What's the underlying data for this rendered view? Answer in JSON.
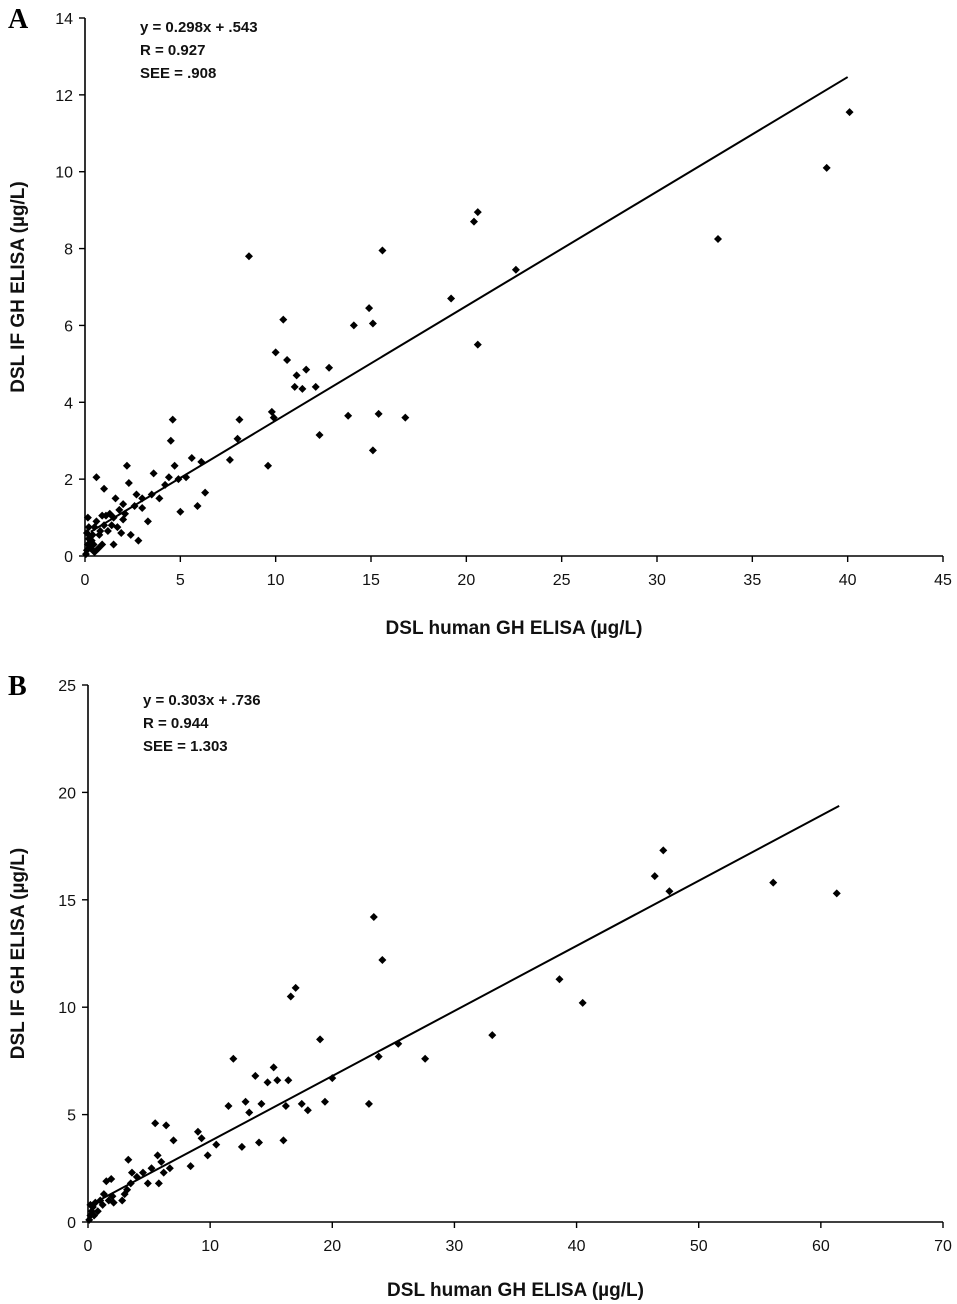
{
  "chart_data": [
    {
      "panel_label": "A",
      "type": "scatter",
      "xlabel": "DSL human GH ELISA (µg/L)",
      "ylabel": "DSL IF GH ELISA (µg/L)",
      "xlim": [
        0,
        45
      ],
      "ylim": [
        0,
        14
      ],
      "xticks": [
        0,
        5,
        10,
        15,
        20,
        25,
        30,
        35,
        40,
        45
      ],
      "yticks": [
        0,
        2,
        4,
        6,
        8,
        10,
        12,
        14
      ],
      "grid": false,
      "annotations": [
        "y = 0.298x + .543",
        "R = 0.927",
        "SEE = .908"
      ],
      "fit_line": {
        "slope": 0.298,
        "intercept": 0.543,
        "x_range": [
          0.3,
          40
        ]
      },
      "points": [
        [
          0.05,
          0.05
        ],
        [
          0.1,
          0.15
        ],
        [
          0.15,
          0.3
        ],
        [
          0.2,
          0.45
        ],
        [
          0.1,
          0.6
        ],
        [
          0.2,
          0.75
        ],
        [
          0.15,
          1.0
        ],
        [
          0.3,
          0.2
        ],
        [
          0.35,
          0.4
        ],
        [
          0.4,
          0.55
        ],
        [
          0.45,
          0.3
        ],
        [
          0.5,
          0.1
        ],
        [
          0.5,
          0.75
        ],
        [
          0.6,
          0.9
        ],
        [
          0.6,
          2.05
        ],
        [
          0.7,
          0.2
        ],
        [
          0.75,
          0.55
        ],
        [
          0.8,
          0.65
        ],
        [
          0.9,
          1.05
        ],
        [
          0.9,
          0.3
        ],
        [
          1.0,
          0.8
        ],
        [
          1.0,
          1.75
        ],
        [
          1.1,
          1.05
        ],
        [
          1.2,
          0.65
        ],
        [
          1.3,
          1.1
        ],
        [
          1.4,
          0.8
        ],
        [
          1.5,
          1.0
        ],
        [
          1.5,
          0.3
        ],
        [
          1.6,
          1.5
        ],
        [
          1.7,
          0.75
        ],
        [
          1.8,
          1.2
        ],
        [
          1.9,
          0.6
        ],
        [
          2.0,
          1.35
        ],
        [
          2.0,
          0.95
        ],
        [
          2.1,
          1.1
        ],
        [
          2.2,
          2.35
        ],
        [
          2.3,
          1.9
        ],
        [
          2.4,
          0.55
        ],
        [
          2.6,
          1.3
        ],
        [
          2.7,
          1.6
        ],
        [
          2.8,
          0.4
        ],
        [
          3.0,
          1.25
        ],
        [
          3.0,
          1.5
        ],
        [
          3.3,
          0.9
        ],
        [
          3.5,
          1.6
        ],
        [
          3.6,
          2.15
        ],
        [
          3.9,
          1.5
        ],
        [
          4.2,
          1.85
        ],
        [
          4.4,
          2.05
        ],
        [
          4.5,
          3.0
        ],
        [
          4.6,
          3.55
        ],
        [
          4.7,
          2.35
        ],
        [
          4.9,
          2.0
        ],
        [
          5.0,
          1.15
        ],
        [
          5.3,
          2.05
        ],
        [
          5.6,
          2.55
        ],
        [
          5.9,
          1.3
        ],
        [
          6.1,
          2.45
        ],
        [
          6.3,
          1.65
        ],
        [
          7.6,
          2.5
        ],
        [
          8.0,
          3.05
        ],
        [
          8.1,
          3.55
        ],
        [
          8.6,
          7.8
        ],
        [
          9.6,
          2.35
        ],
        [
          9.8,
          3.75
        ],
        [
          9.9,
          3.6
        ],
        [
          10.0,
          5.3
        ],
        [
          10.4,
          6.15
        ],
        [
          10.6,
          5.1
        ],
        [
          11.0,
          4.4
        ],
        [
          11.1,
          4.7
        ],
        [
          11.4,
          4.35
        ],
        [
          11.6,
          4.85
        ],
        [
          12.1,
          4.4
        ],
        [
          12.3,
          3.15
        ],
        [
          12.8,
          4.9
        ],
        [
          13.8,
          3.65
        ],
        [
          14.1,
          6.0
        ],
        [
          14.9,
          6.45
        ],
        [
          15.1,
          6.05
        ],
        [
          15.1,
          2.75
        ],
        [
          15.4,
          3.7
        ],
        [
          15.6,
          7.95
        ],
        [
          16.8,
          3.6
        ],
        [
          19.2,
          6.7
        ],
        [
          20.4,
          8.7
        ],
        [
          20.6,
          8.95
        ],
        [
          20.6,
          5.5
        ],
        [
          22.6,
          7.45
        ],
        [
          33.2,
          8.25
        ],
        [
          38.9,
          10.1
        ],
        [
          40.1,
          11.55
        ]
      ]
    },
    {
      "panel_label": "B",
      "type": "scatter",
      "xlabel": "DSL human GH ELISA (µg/L)",
      "ylabel": "DSL IF GH ELISA (µg/L)",
      "xlim": [
        0,
        70
      ],
      "ylim": [
        0,
        25
      ],
      "xticks": [
        0,
        10,
        20,
        30,
        40,
        50,
        60,
        70
      ],
      "yticks": [
        0,
        5,
        10,
        15,
        20,
        25
      ],
      "grid": false,
      "annotations": [
        "y = 0.303x + .736",
        "R = 0.944",
        "SEE = 1.303"
      ],
      "fit_line": {
        "slope": 0.303,
        "intercept": 0.736,
        "x_range": [
          0.3,
          61.5
        ]
      },
      "points": [
        [
          0.1,
          0.1
        ],
        [
          0.2,
          0.3
        ],
        [
          0.3,
          0.5
        ],
        [
          0.2,
          0.8
        ],
        [
          0.4,
          0.7
        ],
        [
          0.5,
          0.3
        ],
        [
          0.6,
          0.9
        ],
        [
          0.8,
          0.5
        ],
        [
          1.0,
          1.0
        ],
        [
          1.2,
          0.8
        ],
        [
          1.3,
          1.3
        ],
        [
          1.5,
          1.9
        ],
        [
          1.7,
          1.0
        ],
        [
          1.9,
          2.0
        ],
        [
          2.0,
          1.2
        ],
        [
          2.1,
          0.9
        ],
        [
          2.8,
          1.0
        ],
        [
          3.0,
          1.3
        ],
        [
          3.2,
          1.5
        ],
        [
          3.3,
          2.9
        ],
        [
          3.5,
          1.8
        ],
        [
          3.6,
          2.3
        ],
        [
          4.0,
          2.1
        ],
        [
          4.5,
          2.3
        ],
        [
          4.9,
          1.8
        ],
        [
          5.2,
          2.5
        ],
        [
          5.5,
          4.6
        ],
        [
          5.7,
          3.1
        ],
        [
          5.8,
          1.8
        ],
        [
          6.0,
          2.8
        ],
        [
          6.2,
          2.3
        ],
        [
          6.4,
          4.5
        ],
        [
          6.7,
          2.5
        ],
        [
          7.0,
          3.8
        ],
        [
          8.4,
          2.6
        ],
        [
          9.0,
          4.2
        ],
        [
          9.3,
          3.9
        ],
        [
          9.8,
          3.1
        ],
        [
          10.5,
          3.6
        ],
        [
          11.5,
          5.4
        ],
        [
          11.9,
          7.6
        ],
        [
          12.6,
          3.5
        ],
        [
          12.9,
          5.6
        ],
        [
          13.2,
          5.1
        ],
        [
          13.7,
          6.8
        ],
        [
          14.0,
          3.7
        ],
        [
          14.2,
          5.5
        ],
        [
          14.7,
          6.5
        ],
        [
          15.2,
          7.2
        ],
        [
          15.5,
          6.6
        ],
        [
          16.0,
          3.8
        ],
        [
          16.2,
          5.4
        ],
        [
          16.4,
          6.6
        ],
        [
          16.6,
          10.5
        ],
        [
          17.0,
          10.9
        ],
        [
          17.5,
          5.5
        ],
        [
          18.0,
          5.2
        ],
        [
          19.0,
          8.5
        ],
        [
          19.4,
          5.6
        ],
        [
          20.0,
          6.7
        ],
        [
          23.0,
          5.5
        ],
        [
          23.4,
          14.2
        ],
        [
          23.8,
          7.7
        ],
        [
          24.1,
          12.2
        ],
        [
          25.4,
          8.3
        ],
        [
          27.6,
          7.6
        ],
        [
          33.1,
          8.7
        ],
        [
          38.6,
          11.3
        ],
        [
          40.5,
          10.2
        ],
        [
          46.4,
          16.1
        ],
        [
          47.1,
          17.3
        ],
        [
          47.6,
          15.4
        ],
        [
          56.1,
          15.8
        ],
        [
          61.3,
          15.3
        ]
      ]
    }
  ]
}
